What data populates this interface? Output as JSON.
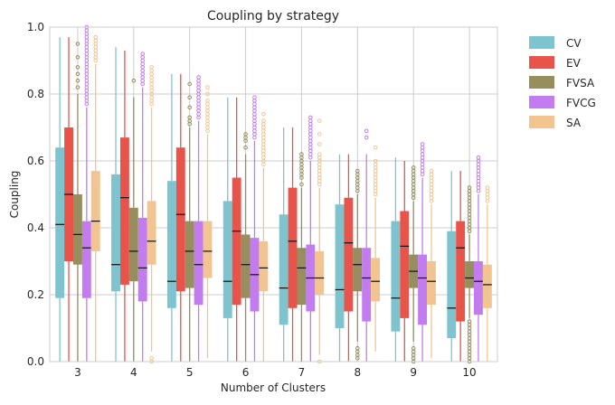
{
  "chart_data": {
    "type": "box",
    "title": "Coupling by strategy",
    "xlabel": "Number of Clusters",
    "ylabel": "Coupling",
    "ylim": [
      0,
      1
    ],
    "yticks": [
      "0.0",
      "0.2",
      "0.4",
      "0.6",
      "0.8",
      "1.0"
    ],
    "grid": true,
    "legend_position": "outside-right-top",
    "categories": [
      "3",
      "4",
      "5",
      "6",
      "7",
      "8",
      "9",
      "10"
    ],
    "series": [
      {
        "name": "CV",
        "color": "#7ec4cf",
        "boxes": [
          {
            "q1": 0.19,
            "median": 0.41,
            "q3": 0.64,
            "whislo": 0.0,
            "whishi": 0.97,
            "outliers": []
          },
          {
            "q1": 0.21,
            "median": 0.29,
            "q3": 0.56,
            "whislo": 0.0,
            "whishi": 0.94,
            "outliers": []
          },
          {
            "q1": 0.16,
            "median": 0.24,
            "q3": 0.54,
            "whislo": 0.0,
            "whishi": 0.86,
            "outliers": []
          },
          {
            "q1": 0.13,
            "median": 0.24,
            "q3": 0.48,
            "whislo": 0.0,
            "whishi": 0.79,
            "outliers": []
          },
          {
            "q1": 0.11,
            "median": 0.22,
            "q3": 0.44,
            "whislo": 0.0,
            "whishi": 0.7,
            "outliers": []
          },
          {
            "q1": 0.1,
            "median": 0.215,
            "q3": 0.47,
            "whislo": 0.0,
            "whishi": 0.62,
            "outliers": []
          },
          {
            "q1": 0.09,
            "median": 0.19,
            "q3": 0.42,
            "whislo": 0.0,
            "whishi": 0.61,
            "outliers": []
          },
          {
            "q1": 0.07,
            "median": 0.16,
            "q3": 0.39,
            "whislo": 0.0,
            "whishi": 0.57,
            "outliers": []
          }
        ]
      },
      {
        "name": "EV",
        "color": "#e8534a",
        "boxes": [
          {
            "q1": 0.3,
            "median": 0.5,
            "q3": 0.7,
            "whislo": 0.0,
            "whishi": 0.97,
            "outliers": []
          },
          {
            "q1": 0.23,
            "median": 0.49,
            "q3": 0.67,
            "whislo": 0.0,
            "whishi": 0.93,
            "outliers": []
          },
          {
            "q1": 0.21,
            "median": 0.44,
            "q3": 0.64,
            "whislo": 0.0,
            "whishi": 0.86,
            "outliers": []
          },
          {
            "q1": 0.17,
            "median": 0.39,
            "q3": 0.55,
            "whislo": 0.0,
            "whishi": 0.79,
            "outliers": []
          },
          {
            "q1": 0.16,
            "median": 0.36,
            "q3": 0.52,
            "whislo": 0.0,
            "whishi": 0.7,
            "outliers": []
          },
          {
            "q1": 0.15,
            "median": 0.355,
            "q3": 0.49,
            "whislo": 0.0,
            "whishi": 0.62,
            "outliers": []
          },
          {
            "q1": 0.13,
            "median": 0.345,
            "q3": 0.45,
            "whislo": 0.0,
            "whishi": 0.6,
            "outliers": []
          },
          {
            "q1": 0.12,
            "median": 0.34,
            "q3": 0.42,
            "whislo": 0.0,
            "whishi": 0.57,
            "outliers": []
          }
        ]
      },
      {
        "name": "FVSA",
        "color": "#968e5d",
        "boxes": [
          {
            "q1": 0.29,
            "median": 0.38,
            "q3": 0.5,
            "whislo": 0.0,
            "whishi": 0.8,
            "outliers": [
              0.82,
              0.84,
              0.86,
              0.88,
              0.91,
              0.95
            ]
          },
          {
            "q1": 0.24,
            "median": 0.33,
            "q3": 0.46,
            "whislo": 0.0,
            "whishi": 0.79,
            "outliers": [
              0.84
            ]
          },
          {
            "q1": 0.22,
            "median": 0.33,
            "q3": 0.42,
            "whislo": 0.0,
            "whishi": 0.7,
            "outliers": [
              0.71,
              0.72,
              0.73,
              0.76,
              0.79,
              0.83
            ]
          },
          {
            "q1": 0.19,
            "median": 0.29,
            "q3": 0.38,
            "whislo": 0.0,
            "whishi": 0.62,
            "outliers": [
              0.64,
              0.66,
              0.67,
              0.68
            ]
          },
          {
            "q1": 0.17,
            "median": 0.28,
            "q3": 0.34,
            "whislo": 0.0,
            "whishi": 0.52,
            "outliers": [
              0.53,
              0.55,
              0.56,
              0.57,
              0.58,
              0.59,
              0.6,
              0.61,
              0.62
            ]
          },
          {
            "q1": 0.21,
            "median": 0.29,
            "q3": 0.34,
            "whislo": 0.06,
            "whishi": 0.5,
            "outliers": [
              0.51,
              0.52,
              0.53,
              0.54,
              0.55,
              0.56,
              0.57,
              0.01,
              0.02,
              0.03,
              0.04
            ]
          },
          {
            "q1": 0.22,
            "median": 0.27,
            "q3": 0.32,
            "whislo": 0.06,
            "whishi": 0.48,
            "outliers": [
              0.49,
              0.5,
              0.51,
              0.52,
              0.53,
              0.54,
              0.55,
              0.56,
              0.57,
              0.58,
              0.0,
              0.01,
              0.02,
              0.03,
              0.04
            ]
          },
          {
            "q1": 0.22,
            "median": 0.25,
            "q3": 0.3,
            "whislo": 0.13,
            "whishi": 0.38,
            "outliers": [
              0.39,
              0.4,
              0.41,
              0.42,
              0.43,
              0.44,
              0.45,
              0.46,
              0.47,
              0.48,
              0.49,
              0.5,
              0.51,
              0.52,
              0.0,
              0.01,
              0.02,
              0.03,
              0.04,
              0.05,
              0.06,
              0.07,
              0.08,
              0.09,
              0.1,
              0.11,
              0.12
            ]
          }
        ]
      },
      {
        "name": "FVCG",
        "color": "#c27cf0",
        "boxes": [
          {
            "q1": 0.19,
            "median": 0.34,
            "q3": 0.42,
            "whislo": 0.0,
            "whishi": 0.76,
            "outliers": [
              0.77,
              0.78,
              0.79,
              0.8,
              0.81,
              0.82,
              0.83,
              0.84,
              0.85,
              0.86,
              0.87,
              0.88,
              0.89,
              0.9,
              0.91,
              0.92,
              0.93,
              0.94,
              0.95,
              0.96,
              0.97,
              0.98,
              0.99,
              1.0
            ]
          },
          {
            "q1": 0.18,
            "median": 0.28,
            "q3": 0.43,
            "whislo": 0.0,
            "whishi": 0.82,
            "outliers": [
              0.83,
              0.84,
              0.85,
              0.86,
              0.87,
              0.88,
              0.89,
              0.9,
              0.91,
              0.92
            ]
          },
          {
            "q1": 0.17,
            "median": 0.29,
            "q3": 0.42,
            "whislo": 0.0,
            "whishi": 0.72,
            "outliers": [
              0.73,
              0.74,
              0.75,
              0.76,
              0.77,
              0.78,
              0.79,
              0.8,
              0.81,
              0.82,
              0.83,
              0.84,
              0.85
            ]
          },
          {
            "q1": 0.15,
            "median": 0.26,
            "q3": 0.37,
            "whislo": 0.0,
            "whishi": 0.66,
            "outliers": [
              0.67,
              0.68,
              0.69,
              0.7,
              0.71,
              0.72,
              0.73,
              0.74,
              0.75,
              0.76,
              0.77,
              0.78,
              0.79
            ]
          },
          {
            "q1": 0.15,
            "median": 0.25,
            "q3": 0.35,
            "whislo": 0.0,
            "whishi": 0.6,
            "outliers": [
              0.61,
              0.62,
              0.63,
              0.64,
              0.65,
              0.66,
              0.67,
              0.68,
              0.69,
              0.7,
              0.71,
              0.72,
              0.73
            ]
          },
          {
            "q1": 0.12,
            "median": 0.25,
            "q3": 0.34,
            "whislo": 0.0,
            "whishi": 0.62,
            "outliers": [
              0.67,
              0.69
            ]
          },
          {
            "q1": 0.11,
            "median": 0.25,
            "q3": 0.32,
            "whislo": 0.0,
            "whishi": 0.55,
            "outliers": [
              0.56,
              0.57,
              0.58,
              0.59,
              0.6,
              0.61,
              0.62,
              0.63,
              0.64,
              0.65
            ]
          },
          {
            "q1": 0.14,
            "median": 0.24,
            "q3": 0.3,
            "whislo": 0.0,
            "whishi": 0.5,
            "outliers": [
              0.51,
              0.52,
              0.53,
              0.54,
              0.55,
              0.56,
              0.57,
              0.58,
              0.59,
              0.6,
              0.61
            ]
          }
        ]
      },
      {
        "name": "SA",
        "color": "#f2c490",
        "boxes": [
          {
            "q1": 0.33,
            "median": 0.42,
            "q3": 0.57,
            "whislo": 0.0,
            "whishi": 0.89,
            "outliers": [
              0.9,
              0.91,
              0.92,
              0.93,
              0.94,
              0.95,
              0.96,
              0.97
            ]
          },
          {
            "q1": 0.29,
            "median": 0.36,
            "q3": 0.48,
            "whislo": 0.03,
            "whishi": 0.76,
            "outliers": [
              0.77,
              0.78,
              0.79,
              0.8,
              0.81,
              0.82,
              0.83,
              0.84,
              0.85,
              0.86,
              0.87,
              0.88,
              0.0,
              0.01
            ]
          },
          {
            "q1": 0.25,
            "median": 0.33,
            "q3": 0.42,
            "whislo": 0.01,
            "whishi": 0.68,
            "outliers": [
              0.69,
              0.7,
              0.71,
              0.72,
              0.73,
              0.74,
              0.75,
              0.76,
              0.77,
              0.78,
              0.8,
              0.82
            ]
          },
          {
            "q1": 0.21,
            "median": 0.28,
            "q3": 0.36,
            "whislo": 0.0,
            "whishi": 0.58,
            "outliers": [
              0.59,
              0.6,
              0.61,
              0.62,
              0.63,
              0.64,
              0.65,
              0.66,
              0.67,
              0.68,
              0.69,
              0.7,
              0.71,
              0.72,
              0.74
            ]
          },
          {
            "q1": 0.2,
            "median": 0.25,
            "q3": 0.33,
            "whislo": 0.02,
            "whishi": 0.52,
            "outliers": [
              0.53,
              0.54,
              0.55,
              0.56,
              0.57,
              0.58,
              0.59,
              0.6,
              0.61,
              0.62,
              0.65,
              0.68,
              0.72,
              0.0
            ]
          },
          {
            "q1": 0.18,
            "median": 0.24,
            "q3": 0.31,
            "whislo": 0.03,
            "whishi": 0.49,
            "outliers": [
              0.5,
              0.51,
              0.52,
              0.53,
              0.54,
              0.55,
              0.56,
              0.57,
              0.58,
              0.59,
              0.6,
              0.64
            ]
          },
          {
            "q1": 0.17,
            "median": 0.24,
            "q3": 0.3,
            "whislo": 0.01,
            "whishi": 0.47,
            "outliers": [
              0.48,
              0.49,
              0.5,
              0.51,
              0.52,
              0.53,
              0.54,
              0.55,
              0.56,
              0.57
            ]
          },
          {
            "q1": 0.16,
            "median": 0.23,
            "q3": 0.29,
            "whislo": 0.0,
            "whishi": 0.47,
            "outliers": [
              0.48,
              0.49,
              0.5,
              0.51,
              0.52
            ]
          }
        ]
      }
    ]
  }
}
